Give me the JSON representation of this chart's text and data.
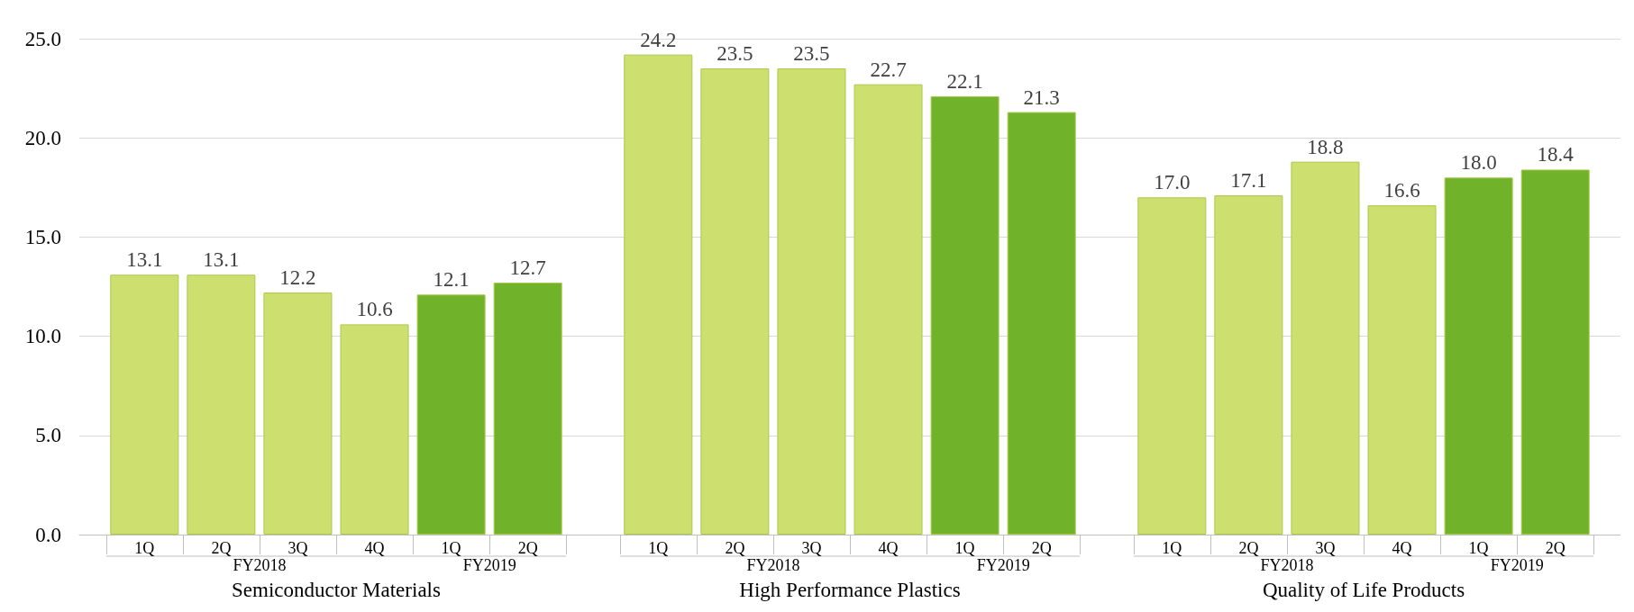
{
  "chart_data": [
    {
      "type": "bar",
      "xlabel": "Semiconductor Materials",
      "categories": [
        "1Q",
        "2Q",
        "3Q",
        "4Q",
        "1Q",
        "2Q"
      ],
      "ylim": [
        0,
        25
      ],
      "yticks": [
        {
          "value": 0,
          "label": "0.0"
        },
        {
          "value": 5,
          "label": "5.0"
        },
        {
          "value": 10,
          "label": "10.0"
        },
        {
          "value": 15,
          "label": "15.0"
        },
        {
          "value": 20,
          "label": "20.0"
        },
        {
          "value": 25,
          "label": "25.0"
        }
      ],
      "grid": "y",
      "series": [
        {
          "name": "FY2018",
          "color": "#cddf6e",
          "values": [
            13.1,
            13.1,
            12.2,
            10.6,
            null,
            null
          ],
          "value_labels": [
            "13.1",
            "13.1",
            "12.2",
            "10.6",
            null,
            null
          ]
        },
        {
          "name": "FY2019",
          "color": "#70b22a",
          "values": [
            null,
            null,
            null,
            null,
            12.1,
            12.7
          ],
          "value_labels": [
            null,
            null,
            null,
            null,
            "12.1",
            "12.7"
          ]
        }
      ]
    },
    {
      "type": "bar",
      "xlabel": "High Performance Plastics",
      "categories": [
        "1Q",
        "2Q",
        "3Q",
        "4Q",
        "1Q",
        "2Q"
      ],
      "ylim": [
        0,
        25
      ],
      "yticks": [
        0,
        5,
        10,
        15,
        20,
        25
      ],
      "grid": "y",
      "tick_labels": "x",
      "series": [
        {
          "name": "FY2018",
          "color": "#cddf6e",
          "values": [
            24.2,
            23.5,
            23.5,
            22.7,
            null,
            null
          ],
          "value_labels": [
            "24.2",
            "23.5",
            "23.5",
            "22.7",
            null,
            null
          ]
        },
        {
          "name": "FY2019",
          "color": "#70b22a",
          "values": [
            null,
            null,
            null,
            null,
            22.1,
            21.3
          ],
          "value_labels": [
            null,
            null,
            null,
            null,
            "22.1",
            "21.3"
          ]
        }
      ]
    },
    {
      "type": "bar",
      "xlabel": "Quality of Life Products",
      "categories": [
        "1Q",
        "2Q",
        "3Q",
        "4Q",
        "1Q",
        "2Q"
      ],
      "ylim": [
        0,
        25
      ],
      "yticks": [
        0,
        5,
        10,
        15,
        20,
        25
      ],
      "grid": "y",
      "tick_labels": "x",
      "series": [
        {
          "name": "FY2018",
          "color": "#cddf6e",
          "values": [
            17.0,
            17.1,
            18.8,
            16.6,
            null,
            null
          ],
          "value_labels": [
            "17.0",
            "17.1",
            "18.8",
            "16.6",
            null,
            null
          ]
        },
        {
          "name": "FY2019",
          "color": "#70b22a",
          "values": [
            null,
            null,
            null,
            null,
            18.0,
            18.4
          ],
          "value_labels": [
            null,
            null,
            null,
            null,
            "18.0",
            "18.4"
          ]
        }
      ]
    }
  ]
}
